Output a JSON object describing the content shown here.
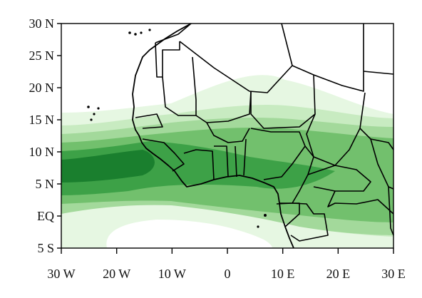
{
  "map": {
    "y_tick_labels": [
      "30 N",
      "25 N",
      "20 N",
      "15 N",
      "10 N",
      "5 N",
      "EQ",
      "5 S"
    ],
    "x_tick_labels": [
      "30 W",
      "20 W",
      "10 W",
      "0",
      "10 E",
      "20 E",
      "30 E"
    ],
    "lon_range": [
      -30,
      30
    ],
    "lat_range": [
      -5,
      30
    ],
    "colors": {
      "level_1": "#e6f7e2",
      "level_2": "#c8ebc1",
      "level_3": "#a3d99b",
      "level_4": "#72c06d",
      "level_5": "#3da147",
      "level_6": "#1a7f2e",
      "outline": "#000000"
    }
  }
}
